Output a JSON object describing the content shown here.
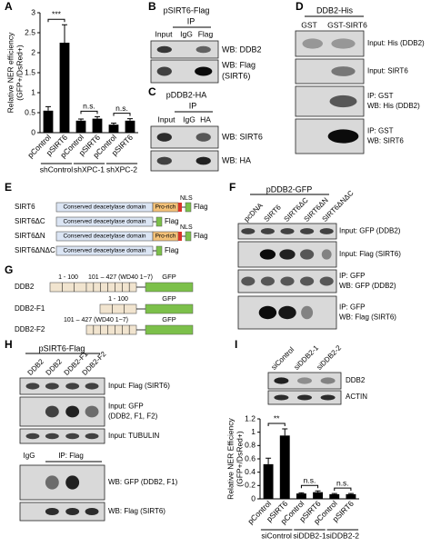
{
  "panel_letters": [
    "A",
    "B",
    "C",
    "D",
    "E",
    "F",
    "G",
    "H",
    "I"
  ],
  "chart_data": [
    {
      "type": "bar",
      "ylabel": [
        "Relative NER efficiency",
        "(GFP+/DsRed+)"
      ],
      "categories": [
        "pControl",
        "pSIRT6",
        "pControl",
        "pSIRT6",
        "pControl",
        "pSIRT6"
      ],
      "groups": [
        "shControl",
        "shXPC-1",
        "shXPC-2"
      ],
      "values": [
        0.55,
        2.25,
        0.3,
        0.35,
        0.2,
        0.3
      ],
      "errors": [
        0.1,
        0.45,
        0.04,
        0.05,
        0.04,
        0.05
      ],
      "color": "#000000",
      "ylim": [
        0,
        3
      ],
      "yticks": [
        0,
        0.5,
        1,
        1.5,
        2,
        2.5,
        3
      ],
      "annotations": [
        "***",
        "n.s.",
        "n.s."
      ]
    },
    {
      "type": "bar",
      "ylabel": [
        "Relative NER Efficiency",
        "(GFP+/DsRed+)"
      ],
      "categories": [
        "pControl",
        "pSIRT6",
        "pControl",
        "pSIRT6",
        "pControl",
        "pSIRT6"
      ],
      "groups": [
        "siControl",
        "siDDB2-1",
        "siDDB2-2"
      ],
      "values": [
        0.52,
        0.95,
        0.08,
        0.1,
        0.07,
        0.07
      ],
      "errors": [
        0.09,
        0.1,
        0.01,
        0.02,
        0.01,
        0.01
      ],
      "color": "#000000",
      "ylim": [
        0,
        1.2
      ],
      "yticks": [
        0,
        0.2,
        0.4,
        0.6,
        0.8,
        1,
        1.2
      ],
      "annotations": [
        "**",
        "n.s.",
        "n.s."
      ]
    }
  ],
  "b": {
    "title": "pSIRT6-Flag",
    "ip": "IP",
    "lanes": [
      "Input",
      "IgG",
      "Flag"
    ],
    "blots": [
      [
        "WB: DDB2"
      ],
      [
        "WB: Flag",
        "(SIRT6)"
      ]
    ]
  },
  "c": {
    "title": "pDDB2-HA",
    "ip": "IP",
    "lanes": [
      "Input",
      "IgG",
      "HA"
    ],
    "blots": [
      [
        "WB: SIRT6"
      ],
      [
        "WB: HA"
      ]
    ]
  },
  "d": {
    "title": "DDB2-His",
    "lanes": [
      "GST",
      "GST-SIRT6"
    ],
    "blots": [
      [
        "Input: His (DDB2)"
      ],
      [
        "Input: SIRT6"
      ],
      [
        "IP: GST",
        "WB: His (DDB2)"
      ],
      [
        "IP: GST",
        "WB: SIRT6"
      ]
    ]
  },
  "e": {
    "constructs": [
      {
        "name": "SIRT6",
        "domain": "Conserved deacetylase domain",
        "pro_rich": "Pro-rich",
        "nls": "NLS",
        "tag": "Flag"
      },
      {
        "name": "SIRT6ΔC",
        "domain": "Conserved deacetylase domain",
        "tag": "Flag"
      },
      {
        "name": "SIRT6ΔN",
        "domain": "Conserved deacetylase domain",
        "pro_rich": "Pro-rich",
        "nls": "NLS",
        "tag": "Flag"
      },
      {
        "name": "SIRT6ΔNΔC",
        "domain": "Conserved deacetylase domain",
        "tag": "Flag"
      }
    ]
  },
  "f": {
    "title": "pDDB2-GFP",
    "lanes": [
      "pcDNA",
      "SIRT6",
      "SIRT6ΔC",
      "SIRT6ΔN",
      "SIRT6ΔNΔC"
    ],
    "blots": [
      [
        "Input: GFP (DDB2)"
      ],
      [
        "Input: Flag (SIRT6)"
      ],
      [
        "IP: GFP",
        "WB: GFP (DDB2)"
      ],
      [
        "IP: GFP",
        "WB: Flag (SIRT6)"
      ]
    ]
  },
  "g": {
    "constructs": [
      {
        "name": "DDB2",
        "regions": [
          "1 - 100",
          "101 – 427 (WD40 1~7)"
        ],
        "tag": "GFP"
      },
      {
        "name": "DDB2-F1",
        "regions": [
          "1 - 100"
        ],
        "tag": "GFP"
      },
      {
        "name": "DDB2-F2",
        "regions": [
          "101 – 427 (WD40 1~7)"
        ],
        "tag": "GFP"
      }
    ]
  },
  "h": {
    "title": "pSIRT6-Flag",
    "lanes": [
      "DDB2",
      "DDB2",
      "DDB2-F1",
      "DDB2-F2"
    ],
    "blots": [
      [
        "Input: Flag (SIRT6)"
      ],
      [
        "Input: GFP",
        "(DDB2, F1, F2)"
      ],
      [
        "Input: TUBULIN"
      ],
      [
        "WB: GFP (DDB2, F1)"
      ],
      [
        "WB: Flag (SIRT6)"
      ]
    ],
    "ip_lanes": [
      "IgG",
      "IP: Flag"
    ]
  },
  "i": {
    "lanes": [
      "siControl",
      "siDDB2-1",
      "siDDB2-2"
    ],
    "blots": [
      [
        "DDB2"
      ],
      [
        "ACTIN"
      ]
    ]
  }
}
